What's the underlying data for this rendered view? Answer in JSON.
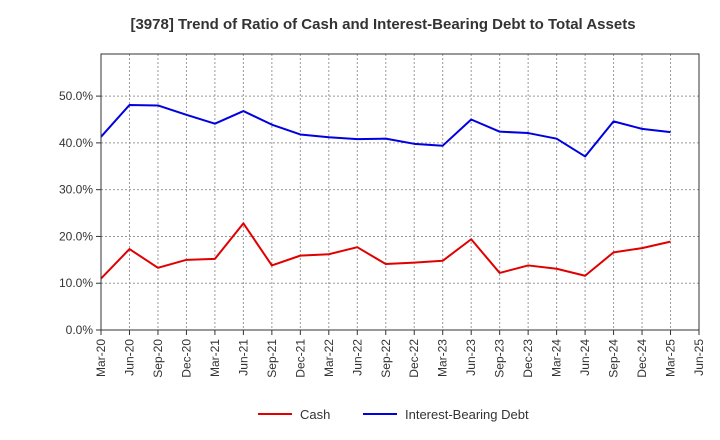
{
  "chart_data": {
    "type": "line",
    "title": "[3978]  Trend of Ratio of Cash and Interest-Bearing Debt to Total Assets",
    "xlabel": "",
    "ylabel": "",
    "x_ticks": [
      "Mar-20",
      "Jun-20",
      "Sep-20",
      "Dec-20",
      "Mar-21",
      "Jun-21",
      "Sep-21",
      "Dec-21",
      "Mar-22",
      "Jun-22",
      "Sep-22",
      "Dec-22",
      "Mar-23",
      "Jun-23",
      "Sep-23",
      "Dec-23",
      "Mar-24",
      "Jun-24",
      "Sep-24",
      "Dec-24",
      "Mar-25",
      "Jun-25"
    ],
    "y_ticks": [
      "0.0%",
      "10.0%",
      "20.0%",
      "30.0%",
      "40.0%",
      "50.0%"
    ],
    "ylim": [
      0,
      59
    ],
    "grid": true,
    "legend_position": "bottom",
    "series": [
      {
        "name": "Cash",
        "color": "#e00000",
        "x": [
          "Mar-20",
          "Jun-20",
          "Sep-20",
          "Dec-20",
          "Mar-21",
          "Jun-21",
          "Sep-21",
          "Dec-21",
          "Mar-22",
          "Jun-22",
          "Sep-22",
          "Dec-22",
          "Mar-23",
          "Jun-23",
          "Sep-23",
          "Dec-23",
          "Mar-24",
          "Jun-24",
          "Sep-24",
          "Dec-24",
          "Mar-25"
        ],
        "values": [
          11.0,
          17.3,
          13.3,
          15.0,
          15.2,
          22.8,
          13.8,
          15.9,
          16.2,
          17.7,
          14.1,
          14.4,
          14.8,
          19.4,
          12.2,
          13.8,
          13.1,
          11.6,
          16.6,
          17.5,
          18.9
        ]
      },
      {
        "name": "Interest-Bearing Debt",
        "color": "#0000e0",
        "x": [
          "Mar-20",
          "Jun-20",
          "Sep-20",
          "Dec-20",
          "Mar-21",
          "Jun-21",
          "Sep-21",
          "Dec-21",
          "Mar-22",
          "Jun-22",
          "Sep-22",
          "Dec-22",
          "Mar-23",
          "Jun-23",
          "Sep-23",
          "Dec-23",
          "Mar-24",
          "Jun-24",
          "Sep-24",
          "Dec-24",
          "Mar-25"
        ],
        "values": [
          41.3,
          48.1,
          48.0,
          46.0,
          44.1,
          46.8,
          43.9,
          41.8,
          41.2,
          40.8,
          40.9,
          39.8,
          39.4,
          45.0,
          42.4,
          42.1,
          40.9,
          37.1,
          44.6,
          43.0,
          42.3
        ]
      }
    ]
  }
}
